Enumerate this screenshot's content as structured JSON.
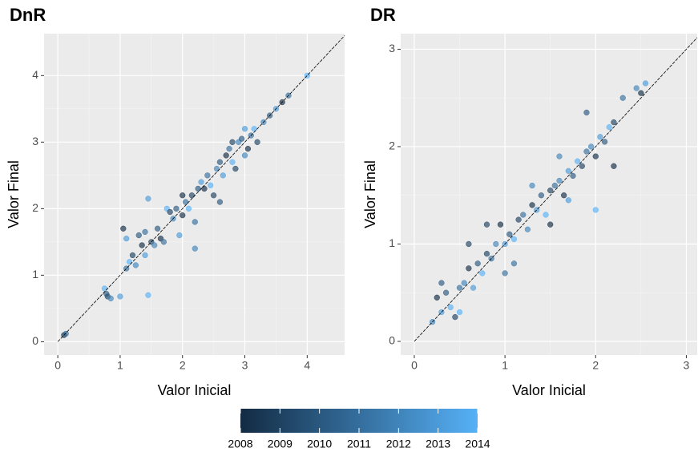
{
  "chart_data": [
    {
      "type": "scatter",
      "title": "DnR",
      "x_label": "Valor Inicial",
      "y_label": "Valor Final",
      "xlim": [
        -0.22,
        4.6
      ],
      "ylim": [
        -0.2,
        4.63
      ],
      "xticks": [
        0,
        1,
        2,
        3,
        4
      ],
      "yticks": [
        0,
        1,
        2,
        3,
        4
      ],
      "x": [
        0.1,
        0.13,
        0.75,
        0.8,
        0.85,
        0.78,
        1.0,
        1.05,
        1.1,
        1.15,
        1.2,
        1.25,
        1.3,
        1.1,
        1.35,
        1.4,
        1.45,
        1.5,
        1.55,
        1.6,
        1.45,
        1.65,
        1.7,
        1.75,
        1.8,
        1.85,
        1.9,
        1.95,
        2.0,
        2.05,
        2.1,
        2.15,
        2.2,
        2.25,
        2.3,
        2.35,
        2.4,
        2.45,
        2.5,
        2.55,
        2.6,
        2.65,
        2.7,
        2.75,
        2.8,
        2.85,
        2.9,
        2.95,
        3.0,
        3.05,
        3.1,
        3.15,
        3.2,
        3.3,
        3.4,
        3.5,
        3.6,
        3.7,
        4.0,
        2.8,
        3.0,
        2.6,
        1.4,
        2.0,
        2.2
      ],
      "values": [
        0.1,
        0.12,
        0.8,
        0.68,
        0.65,
        0.72,
        0.68,
        1.7,
        1.1,
        1.2,
        1.3,
        1.15,
        1.6,
        1.55,
        1.45,
        1.65,
        0.7,
        1.5,
        1.45,
        1.7,
        2.15,
        1.55,
        1.5,
        2.0,
        1.95,
        1.85,
        2.0,
        1.6,
        1.9,
        2.1,
        2.0,
        2.2,
        1.4,
        2.3,
        2.4,
        2.3,
        2.5,
        2.35,
        2.2,
        2.6,
        2.7,
        2.5,
        2.8,
        2.9,
        2.7,
        2.6,
        3.0,
        3.05,
        3.2,
        2.9,
        3.1,
        3.2,
        3.0,
        3.3,
        3.4,
        3.5,
        3.6,
        3.7,
        4.0,
        3.0,
        2.8,
        2.1,
        1.3,
        2.2,
        1.8
      ],
      "year": [
        2008,
        2011,
        2014,
        2009,
        2012,
        2010,
        2013,
        2008,
        2011,
        2014,
        2009,
        2012,
        2010,
        2013,
        2008,
        2011,
        2014,
        2009,
        2012,
        2010,
        2013,
        2008,
        2011,
        2014,
        2009,
        2012,
        2010,
        2013,
        2008,
        2011,
        2014,
        2009,
        2012,
        2010,
        2013,
        2008,
        2011,
        2014,
        2009,
        2012,
        2010,
        2013,
        2008,
        2011,
        2014,
        2009,
        2012,
        2010,
        2013,
        2008,
        2011,
        2014,
        2009,
        2012,
        2010,
        2013,
        2008,
        2011,
        2014,
        2009,
        2012,
        2010,
        2013,
        2008,
        2011
      ]
    },
    {
      "type": "scatter",
      "title": "DR",
      "x_label": "Valor Inicial",
      "y_label": "Valor Final",
      "xlim": [
        -0.15,
        3.12
      ],
      "ylim": [
        -0.14,
        3.16
      ],
      "xticks": [
        0,
        1,
        2,
        3
      ],
      "yticks": [
        0,
        1,
        2,
        3
      ],
      "x": [
        0.2,
        0.25,
        0.3,
        0.35,
        0.4,
        0.45,
        0.5,
        0.55,
        0.6,
        0.65,
        0.7,
        0.75,
        0.8,
        0.85,
        0.9,
        0.95,
        1.0,
        1.05,
        1.1,
        1.15,
        1.2,
        1.25,
        1.3,
        1.35,
        1.4,
        1.45,
        1.5,
        1.55,
        1.6,
        1.65,
        1.7,
        1.75,
        1.8,
        1.85,
        1.9,
        1.95,
        2.0,
        2.05,
        2.1,
        2.15,
        2.2,
        2.3,
        2.45,
        2.5,
        2.55,
        0.3,
        0.5,
        0.8,
        1.1,
        1.3,
        1.5,
        1.7,
        1.9,
        2.0,
        0.6,
        1.0,
        1.6,
        2.2
      ],
      "values": [
        0.2,
        0.45,
        0.3,
        0.5,
        0.35,
        0.25,
        0.55,
        0.6,
        0.75,
        0.55,
        0.8,
        0.7,
        0.9,
        0.85,
        1.0,
        1.2,
        1.0,
        1.1,
        1.05,
        1.25,
        1.3,
        1.15,
        1.4,
        1.35,
        1.5,
        1.3,
        1.55,
        1.6,
        1.65,
        1.5,
        1.75,
        1.7,
        1.85,
        1.8,
        1.95,
        2.0,
        1.9,
        2.1,
        2.05,
        2.2,
        2.25,
        2.5,
        2.6,
        2.55,
        2.65,
        0.6,
        0.3,
        1.2,
        0.8,
        1.6,
        1.2,
        1.45,
        2.35,
        1.35,
        1.0,
        0.7,
        1.9,
        1.8
      ],
      "year": [
        2012,
        2008,
        2013,
        2010,
        2014,
        2009,
        2011,
        2012,
        2008,
        2013,
        2010,
        2014,
        2009,
        2011,
        2012,
        2008,
        2013,
        2010,
        2014,
        2009,
        2011,
        2012,
        2008,
        2013,
        2010,
        2014,
        2009,
        2011,
        2012,
        2008,
        2013,
        2010,
        2014,
        2009,
        2011,
        2012,
        2008,
        2013,
        2010,
        2014,
        2009,
        2011,
        2012,
        2008,
        2013,
        2010,
        2014,
        2009,
        2011,
        2012,
        2008,
        2013,
        2010,
        2014,
        2009,
        2011,
        2012,
        2008
      ]
    }
  ],
  "colorbar": {
    "limits": [
      2008,
      2014
    ],
    "ticks": [
      2008,
      2009,
      2010,
      2011,
      2012,
      2013,
      2014
    ],
    "low": "#132B43",
    "high": "#56B1F7"
  }
}
